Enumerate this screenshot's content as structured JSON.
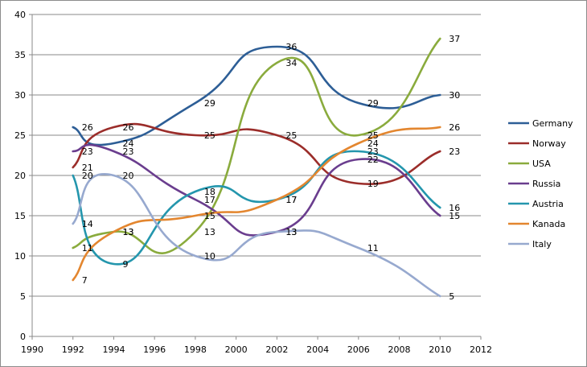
{
  "chart_data": {
    "type": "line",
    "title": "",
    "xlabel": "",
    "ylabel": "",
    "xlim": [
      1990,
      2012
    ],
    "ylim": [
      0,
      40
    ],
    "x_ticks": [
      1990,
      1992,
      1994,
      1996,
      1998,
      2000,
      2002,
      2004,
      2006,
      2008,
      2010,
      2012
    ],
    "y_ticks": [
      0,
      5,
      10,
      15,
      20,
      25,
      30,
      35,
      40
    ],
    "grid": "horizontal",
    "legend": "right",
    "x": [
      1992,
      1994,
      1998,
      2002,
      2006,
      2010
    ],
    "series": [
      {
        "name": "Germany",
        "color": "#2d5e96",
        "values": [
          26,
          24,
          29,
          36,
          29,
          30
        ]
      },
      {
        "name": "Norway",
        "color": "#9b2d2a",
        "values": [
          21,
          26,
          25,
          25,
          19,
          23
        ]
      },
      {
        "name": "USA",
        "color": "#8aab3d",
        "values": [
          11,
          13,
          13,
          34,
          25,
          37
        ]
      },
      {
        "name": "Russia",
        "color": "#6a3d8e",
        "values": [
          23,
          23,
          17,
          13,
          22,
          15
        ]
      },
      {
        "name": "Austria",
        "color": "#2496ad",
        "values": [
          20,
          9,
          18,
          17,
          23,
          16
        ]
      },
      {
        "name": "Kanada",
        "color": "#e3862f",
        "values": [
          7,
          13,
          15,
          17,
          24,
          26
        ]
      },
      {
        "name": "Italy",
        "color": "#97a9cf",
        "values": [
          14,
          20,
          10,
          13,
          11,
          5
        ]
      }
    ]
  }
}
